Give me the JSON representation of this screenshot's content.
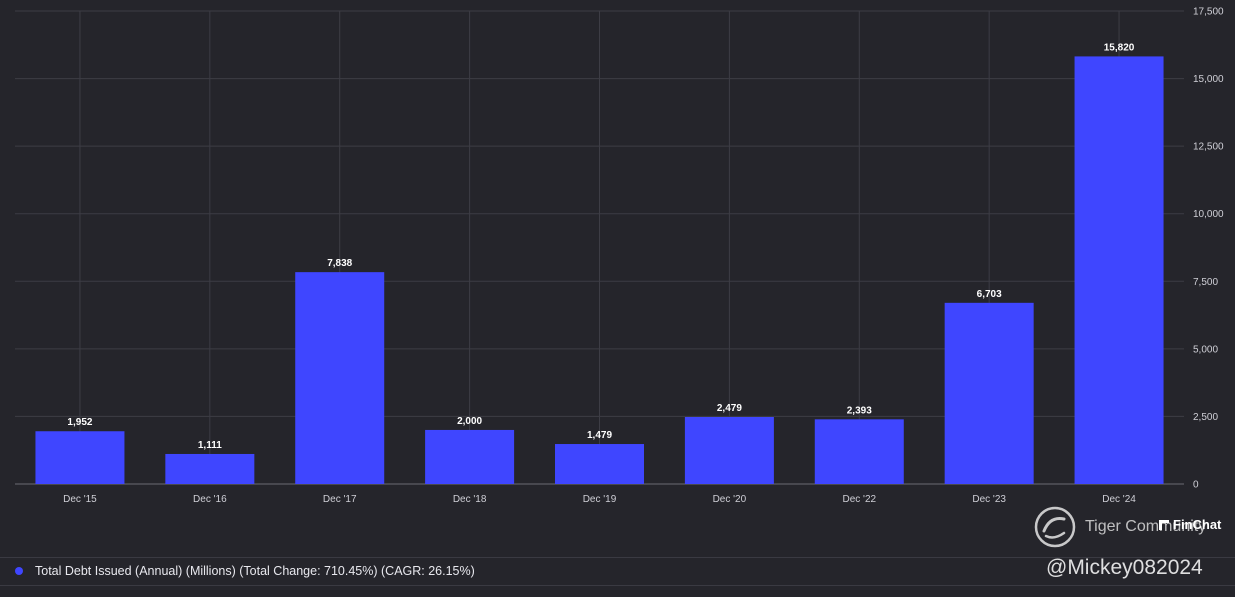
{
  "chart_data": {
    "type": "bar",
    "categories": [
      "Dec '15",
      "Dec '16",
      "Dec '17",
      "Dec '18",
      "Dec '19",
      "Dec '20",
      "Dec '22",
      "Dec '23",
      "Dec '24"
    ],
    "values": [
      1952,
      1111,
      7838,
      2000,
      1479,
      2479,
      2393,
      6703,
      15820
    ],
    "value_labels": [
      "1,952",
      "1,111",
      "7,838",
      "2,000",
      "1,479",
      "2,479",
      "2,393",
      "6,703",
      "15,820"
    ],
    "ylim": [
      0,
      17500
    ],
    "yticks": [
      0,
      2500,
      5000,
      7500,
      10000,
      12500,
      15000,
      17500
    ],
    "ytick_labels": [
      "0",
      "2,500",
      "5,000",
      "7,500",
      "10,000",
      "12,500",
      "15,000",
      "17,500"
    ],
    "y_axis_side": "right",
    "grid": true,
    "legend_position": "bottom-left"
  },
  "legend": {
    "label": "Total Debt Issued (Annual) (Millions) (Total Change: 710.45%) (CAGR: 26.15%)"
  },
  "colors": {
    "background": "#25252b",
    "bar": "#3f46ff",
    "grid": "#3d3d45"
  },
  "watermark": {
    "tiger": "Tiger Community",
    "finchat": "FinChat",
    "user": "@Mickey082024"
  }
}
